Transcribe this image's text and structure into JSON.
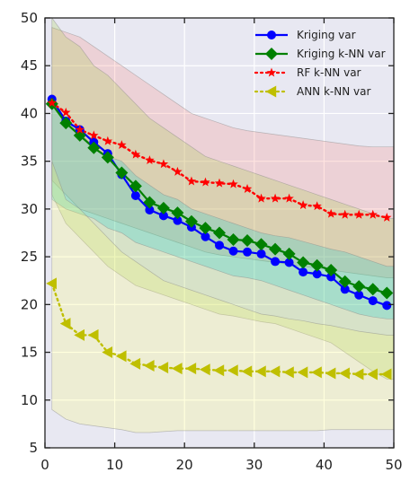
{
  "chart_data": {
    "type": "line",
    "xlim": [
      0,
      50
    ],
    "ylim": [
      5,
      50
    ],
    "xticks": [
      0,
      10,
      20,
      30,
      40,
      50
    ],
    "yticks": [
      5,
      10,
      15,
      20,
      25,
      30,
      35,
      40,
      45,
      50
    ],
    "grid": true,
    "legend_position": "top-right",
    "background": "#e8e8f2",
    "series": [
      {
        "name": "Kriging var",
        "color": "#0000ff",
        "marker": "circle",
        "line": "solid",
        "x": [
          1,
          3,
          5,
          7,
          9,
          11,
          13,
          15,
          17,
          19,
          21,
          23,
          25,
          27,
          29,
          31,
          33,
          35,
          37,
          39,
          41,
          43,
          45,
          47,
          49
        ],
        "y": [
          41.5,
          39.2,
          38.3,
          37.0,
          35.8,
          33.6,
          31.4,
          29.9,
          29.3,
          28.8,
          28.1,
          27.1,
          26.2,
          25.6,
          25.5,
          25.3,
          24.5,
          24.4,
          23.4,
          23.2,
          22.9,
          21.6,
          21.0,
          20.4,
          19.9
        ],
        "band_upper": [
          41.5,
          39.0,
          38.0,
          36.5,
          35.5,
          35.0,
          33.5,
          32.5,
          31.5,
          31.0,
          30.0,
          29.5,
          29.0,
          28.5,
          28.0,
          27.5,
          27.2,
          27.0,
          26.6,
          26.2,
          25.8,
          25.5,
          25.0,
          24.5,
          24.0
        ],
        "band_lower": [
          31.0,
          30.0,
          29.5,
          29.0,
          28.0,
          27.5,
          26.5,
          26.0,
          25.5,
          25.0,
          24.5,
          24.0,
          23.5,
          23.0,
          22.8,
          22.5,
          22.0,
          21.5,
          21.0,
          20.5,
          20.0,
          19.5,
          19.0,
          18.7,
          18.5
        ],
        "band_color": "#00ced1"
      },
      {
        "name": "Kriging k-NN var",
        "color": "#008000",
        "marker": "diamond",
        "line": "solid",
        "x": [
          1,
          3,
          5,
          7,
          9,
          11,
          13,
          15,
          17,
          19,
          21,
          23,
          25,
          27,
          29,
          31,
          33,
          35,
          37,
          39,
          41,
          43,
          45,
          47,
          49
        ],
        "y": [
          41.0,
          39.0,
          37.7,
          36.4,
          35.4,
          33.8,
          32.4,
          30.7,
          30.1,
          29.6,
          28.7,
          28.0,
          27.5,
          26.8,
          26.7,
          26.3,
          25.8,
          25.3,
          24.4,
          24.1,
          23.6,
          22.4,
          21.9,
          21.6,
          21.2
        ],
        "band_upper": [
          50.0,
          48.0,
          47.0,
          45.0,
          44.0,
          42.5,
          41.0,
          39.5,
          38.5,
          37.5,
          36.5,
          35.5,
          35.0,
          34.5,
          34.0,
          33.5,
          33.0,
          32.5,
          32.0,
          31.5,
          31.0,
          30.5,
          30.0,
          29.5,
          29.0
        ],
        "band_lower": [
          31.5,
          28.5,
          27.0,
          25.5,
          24.0,
          23.0,
          22.0,
          21.5,
          21.0,
          20.5,
          20.0,
          19.5,
          19.0,
          18.8,
          18.5,
          18.2,
          18.0,
          17.5,
          17.0,
          16.5,
          16.0,
          15.0,
          14.0,
          13.0,
          12.2
        ],
        "band_color": "#9acd32"
      },
      {
        "name": "RF k-NN var",
        "color": "#ff0000",
        "marker": "star",
        "line": "dotted",
        "x": [
          1,
          3,
          5,
          7,
          9,
          11,
          13,
          15,
          17,
          19,
          21,
          23,
          25,
          27,
          29,
          31,
          33,
          35,
          37,
          39,
          41,
          43,
          45,
          47,
          49
        ],
        "y": [
          41.1,
          40.1,
          38.3,
          37.7,
          37.1,
          36.7,
          35.7,
          35.1,
          34.7,
          33.9,
          32.9,
          32.8,
          32.7,
          32.6,
          32.1,
          31.1,
          31.1,
          31.1,
          30.4,
          30.3,
          29.5,
          29.4,
          29.4,
          29.4,
          29.1
        ],
        "band_upper": [
          49.0,
          48.5,
          48.0,
          47.0,
          46.0,
          45.0,
          44.0,
          43.0,
          42.0,
          41.0,
          40.0,
          39.5,
          39.0,
          38.5,
          38.2,
          38.0,
          37.8,
          37.6,
          37.4,
          37.2,
          37.0,
          36.8,
          36.6,
          36.5,
          36.5
        ],
        "band_lower": [
          33.0,
          31.5,
          30.0,
          29.5,
          29.0,
          28.5,
          28.0,
          27.5,
          27.0,
          26.5,
          26.0,
          25.5,
          25.2,
          25.0,
          24.8,
          24.6,
          24.4,
          24.2,
          24.0,
          23.8,
          23.6,
          23.4,
          23.2,
          23.0,
          22.8
        ],
        "band_color": "#fa8072"
      },
      {
        "name": "ANN k-NN var",
        "color": "#bfbf00",
        "marker": "triangle-left",
        "line": "dotted",
        "x": [
          1,
          3,
          5,
          7,
          9,
          11,
          13,
          15,
          17,
          19,
          21,
          23,
          25,
          27,
          29,
          31,
          33,
          35,
          37,
          39,
          41,
          43,
          45,
          47,
          49
        ],
        "y": [
          22.2,
          18.0,
          16.8,
          16.8,
          15.0,
          14.6,
          13.8,
          13.6,
          13.4,
          13.3,
          13.3,
          13.2,
          13.1,
          13.1,
          13.0,
          13.0,
          13.0,
          12.9,
          12.9,
          12.9,
          12.8,
          12.8,
          12.7,
          12.7,
          12.7
        ],
        "band_upper": [
          35.0,
          31.0,
          30.0,
          28.5,
          27.0,
          25.5,
          24.5,
          23.5,
          22.5,
          22.0,
          21.5,
          21.0,
          20.5,
          20.0,
          19.5,
          19.0,
          18.8,
          18.5,
          18.3,
          18.0,
          17.8,
          17.5,
          17.2,
          17.0,
          16.8
        ],
        "band_lower": [
          9.0,
          8.0,
          7.5,
          7.3,
          7.1,
          6.9,
          6.6,
          6.6,
          6.7,
          6.8,
          6.8,
          6.8,
          6.8,
          6.8,
          6.8,
          6.8,
          6.8,
          6.8,
          6.8,
          6.8,
          6.9,
          6.9,
          6.9,
          6.9,
          6.9
        ],
        "band_color": "#ffff66"
      }
    ]
  }
}
